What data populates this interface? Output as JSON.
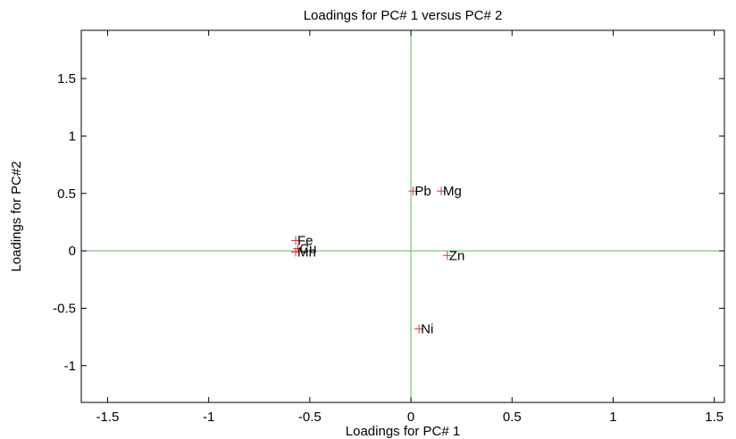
{
  "chart_data": {
    "type": "scatter",
    "title": "Loadings for PC# 1 versus PC# 2",
    "xlabel": "Loadings for PC# 1",
    "ylabel": "Loadings for PC#2",
    "xlim": [
      -1.63,
      1.55
    ],
    "ylim": [
      -1.32,
      1.92
    ],
    "xticks": [
      -1.5,
      -1,
      -0.5,
      0,
      0.5,
      1,
      1.5
    ],
    "xtick_labels": [
      "-1.5",
      "-1",
      "-0.5",
      "0",
      "0.5",
      "1",
      "1.5"
    ],
    "yticks": [
      -1,
      -0.5,
      0,
      0.5,
      1,
      1.5
    ],
    "ytick_labels": [
      "-1",
      "-0.5",
      "0",
      "0.5",
      "1",
      "1.5"
    ],
    "grid": false,
    "reference_lines": {
      "x": 0,
      "y": 0,
      "color": "#5cb85c"
    },
    "marker": "+",
    "marker_color": "#e0303a",
    "points": [
      {
        "label": "Fe",
        "x": -0.57,
        "y": 0.09
      },
      {
        "label": "Cu",
        "x": -0.56,
        "y": 0.02
      },
      {
        "label": "Mn",
        "x": -0.57,
        "y": -0.01
      },
      {
        "label": "Pb",
        "x": 0.01,
        "y": 0.52
      },
      {
        "label": "Mg",
        "x": 0.15,
        "y": 0.52
      },
      {
        "label": "Zn",
        "x": 0.18,
        "y": -0.04
      },
      {
        "label": "Ni",
        "x": 0.04,
        "y": -0.68
      }
    ]
  }
}
